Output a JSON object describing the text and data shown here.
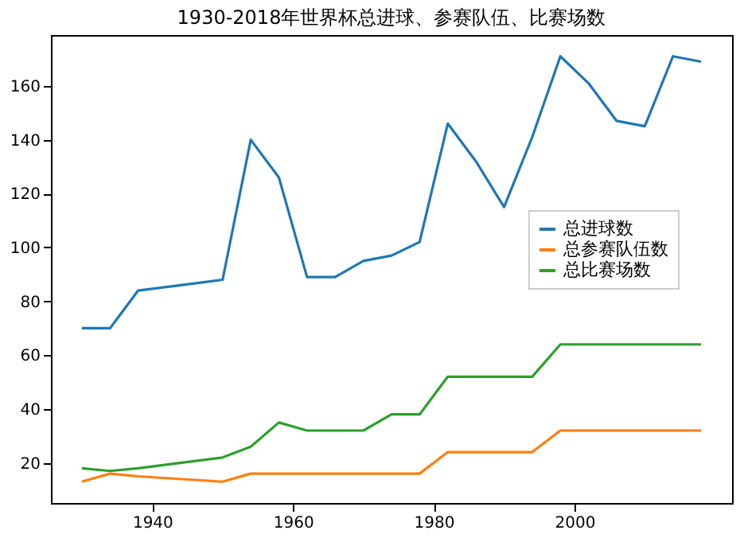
{
  "chart_data": {
    "type": "line",
    "title": "1930-2018年世界杯总进球、参赛队伍、比赛场数",
    "x": [
      1930,
      1934,
      1938,
      1950,
      1954,
      1958,
      1962,
      1966,
      1970,
      1974,
      1978,
      1982,
      1986,
      1990,
      1994,
      1998,
      2002,
      2006,
      2010,
      2014,
      2018
    ],
    "series": [
      {
        "name": "总进球数",
        "color": "#1f77b4",
        "values": [
          70,
          70,
          84,
          88,
          140,
          126,
          89,
          89,
          95,
          97,
          102,
          146,
          132,
          115,
          141,
          171,
          161,
          147,
          145,
          171,
          169
        ]
      },
      {
        "name": "总参赛队伍数",
        "color": "#ff7f0e",
        "values": [
          13,
          16,
          15,
          13,
          16,
          16,
          16,
          16,
          16,
          16,
          16,
          24,
          24,
          24,
          24,
          32,
          32,
          32,
          32,
          32,
          32
        ]
      },
      {
        "name": "总比赛场数",
        "color": "#2ca02c",
        "values": [
          18,
          17,
          18,
          22,
          26,
          35,
          32,
          32,
          32,
          38,
          38,
          52,
          52,
          52,
          52,
          64,
          64,
          64,
          64,
          64,
          64
        ]
      }
    ],
    "xlim": [
      1925.6,
      2022.4
    ],
    "xticks": [
      1940,
      1960,
      1980,
      2000
    ],
    "ylim": [
      5.1,
      178.9
    ],
    "yticks": [
      20,
      40,
      60,
      80,
      100,
      120,
      140,
      160
    ],
    "legend": "right",
    "grid": false,
    "marker": "none",
    "line_style": "solid"
  }
}
